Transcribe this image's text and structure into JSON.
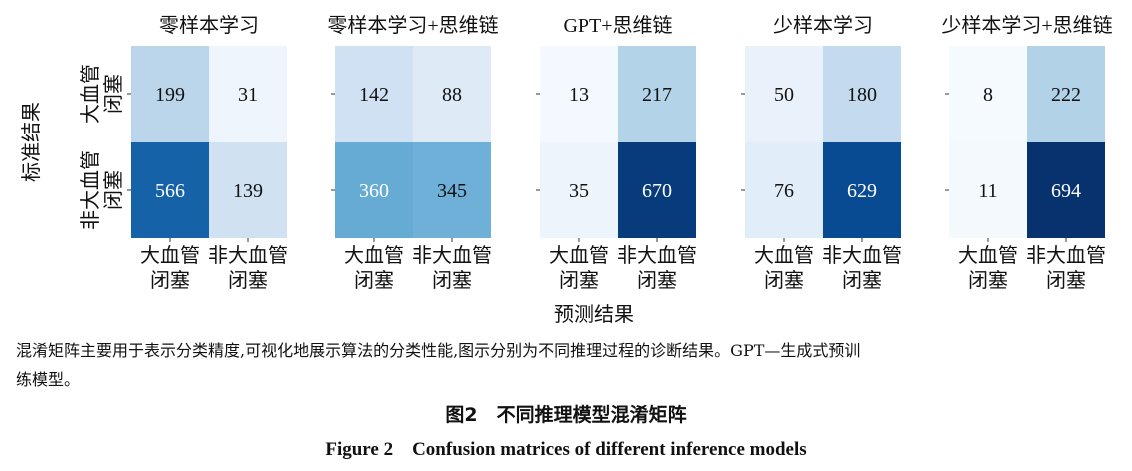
{
  "chart_data": {
    "type": "heatmap",
    "xlabel": "预测结果",
    "ylabel": "标准结果",
    "row_labels": [
      [
        "大血管",
        "闭塞"
      ],
      [
        "非大血管",
        "闭塞"
      ]
    ],
    "col_labels": [
      [
        "大血管",
        "闭塞"
      ],
      [
        "非大血管",
        "闭塞"
      ]
    ],
    "colormap": [
      "#f7fbff",
      "#deebf7",
      "#c6dbef",
      "#9ecae1",
      "#6baed6",
      "#4292c6",
      "#2171b5",
      "#08519c",
      "#08306b"
    ],
    "color_range": [
      0,
      700
    ],
    "panels": [
      {
        "title": "零样本学习",
        "matrix": [
          [
            199,
            31
          ],
          [
            566,
            139
          ]
        ]
      },
      {
        "title": "零样本学习+思维链",
        "matrix": [
          [
            142,
            88
          ],
          [
            360,
            345
          ]
        ]
      },
      {
        "title": "GPT+思维链",
        "matrix": [
          [
            13,
            217
          ],
          [
            35,
            670
          ]
        ]
      },
      {
        "title": "少样本学习",
        "matrix": [
          [
            50,
            180
          ],
          [
            76,
            629
          ]
        ]
      },
      {
        "title": "少样本学习+思维链",
        "matrix": [
          [
            8,
            222
          ],
          [
            11,
            694
          ]
        ]
      }
    ]
  },
  "caption": {
    "line1": "混淆矩阵主要用于表示分类精度,可视化地展示算法的分类性能,图示分别为不同推理过程的诊断结果。GPT—生成式预训",
    "line2": "练模型。"
  },
  "figure_title_zh": "图2　不同推理模型混淆矩阵",
  "figure_title_en": "Figure 2　Confusion matrices of different inference models"
}
